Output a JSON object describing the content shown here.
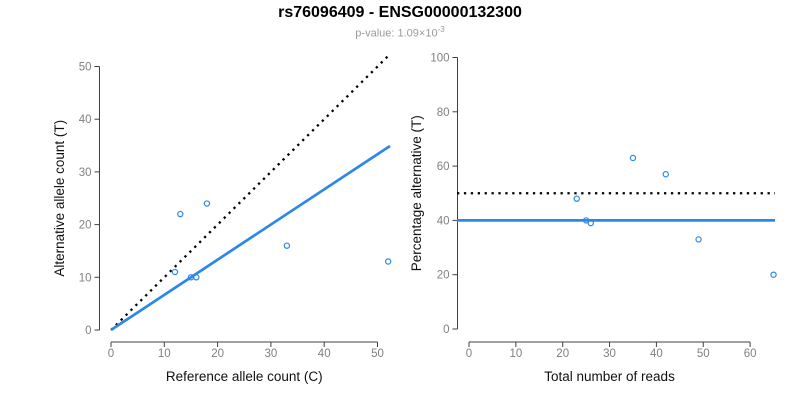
{
  "title": "rs76096409 - ENSG00000132300",
  "subtitle": {
    "text": "p-value: 1.09×10",
    "exponent": "-3"
  },
  "colors": {
    "accent_blue": "#2B87E8",
    "line_black": "#000000",
    "tick_label_gray": "#808080",
    "axis_gray": "#404040",
    "label_black": "#111111",
    "subtitle_gray": "#999999",
    "background": "#ffffff"
  },
  "chart_data": [
    {
      "name": "allele-counts",
      "type": "scatter",
      "title": "",
      "xlabel": "Reference allele count (C)",
      "ylabel": "Alternative allele count (T)",
      "xlim": [
        0,
        52
      ],
      "ylim": [
        0,
        52
      ],
      "x_ticks": [
        0,
        10,
        20,
        30,
        40,
        50
      ],
      "y_ticks": [
        0,
        10,
        20,
        30,
        40,
        50
      ],
      "grid": false,
      "legend": null,
      "points": [
        [
          12,
          11
        ],
        [
          13,
          22
        ],
        [
          15,
          10
        ],
        [
          16,
          10
        ],
        [
          18,
          24
        ],
        [
          33,
          16
        ],
        [
          52,
          13
        ]
      ],
      "lines": [
        {
          "name": "identity-line",
          "style": "dotted",
          "color": "#000000",
          "slope": 1,
          "intercept": 0,
          "x_start": 0
        },
        {
          "name": "fit-line",
          "style": "solid",
          "color": "#2B87E8",
          "slope": 0.667,
          "intercept": 0,
          "x_start": 0
        }
      ]
    },
    {
      "name": "percentage-vs-reads",
      "type": "scatter",
      "title": "",
      "xlabel": "Total number of reads",
      "ylabel": "Percentage alternative (T)",
      "xlim": [
        0,
        65
      ],
      "ylim": [
        0,
        100
      ],
      "x_ticks": [
        0,
        10,
        20,
        30,
        40,
        50,
        60
      ],
      "y_ticks": [
        0,
        20,
        40,
        60,
        80,
        100
      ],
      "grid": false,
      "legend": null,
      "points": [
        [
          23,
          48
        ],
        [
          25,
          40
        ],
        [
          26,
          39
        ],
        [
          35,
          63
        ],
        [
          42,
          57
        ],
        [
          49,
          33
        ],
        [
          65,
          20
        ]
      ],
      "lines": [
        {
          "name": "fifty-percent-line",
          "style": "dotted",
          "color": "#000000",
          "slope": 0,
          "intercept": 50
        },
        {
          "name": "mean-percentage-line",
          "style": "solid",
          "color": "#2B87E8",
          "slope": 0,
          "intercept": 40
        }
      ]
    }
  ]
}
